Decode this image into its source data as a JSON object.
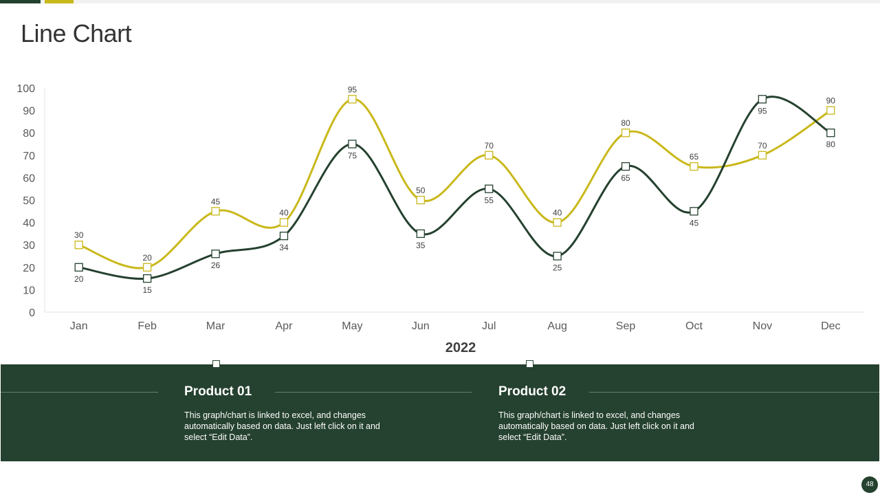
{
  "slide": {
    "title": "Line Chart",
    "page_number": "48"
  },
  "colors": {
    "dark_green": "#25412f",
    "yellow": "#c9b81a"
  },
  "products": [
    {
      "title": "Product 01",
      "description": "This graph/chart is linked to excel, and changes automatically based on data. Just left click on it and select “Edit Data”."
    },
    {
      "title": "Product 02",
      "description": "This graph/chart is linked to excel, and changes automatically based on data. Just left click on it and select “Edit Data”."
    }
  ],
  "chart_data": {
    "type": "line",
    "title": "",
    "xlabel": "2022",
    "ylabel": "",
    "categories": [
      "Jan",
      "Feb",
      "Mar",
      "Apr",
      "May",
      "Jun",
      "Jul",
      "Aug",
      "Sep",
      "Oct",
      "Nov",
      "Dec"
    ],
    "y_ticks": [
      0,
      10,
      20,
      30,
      40,
      50,
      60,
      70,
      80,
      90,
      100
    ],
    "ylim": [
      0,
      100
    ],
    "grid": false,
    "series": [
      {
        "values": [
          20,
          15,
          26,
          34,
          75,
          35,
          55,
          25,
          65,
          45,
          95,
          80
        ],
        "color": "#25412f",
        "label_position": "below"
      },
      {
        "values": [
          30,
          20,
          45,
          40,
          95,
          50,
          70,
          40,
          80,
          65,
          70,
          90
        ],
        "color": "#c9b81a",
        "label_position": "above"
      }
    ]
  }
}
